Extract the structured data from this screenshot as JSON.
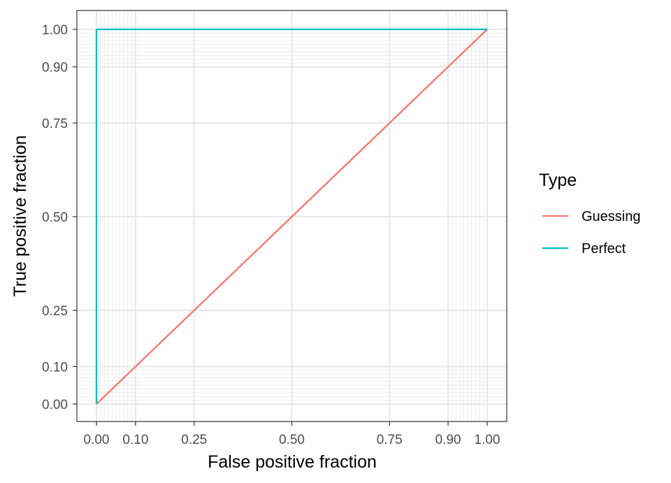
{
  "chart_data": {
    "type": "line",
    "title": "",
    "xlabel": "False positive fraction",
    "ylabel": "True positive fraction",
    "xlim": [
      0,
      1
    ],
    "ylim": [
      0,
      1
    ],
    "x_ticks": [
      0.0,
      0.1,
      0.25,
      0.5,
      0.75,
      0.9,
      1.0
    ],
    "y_ticks": [
      0.0,
      0.1,
      0.25,
      0.5,
      0.75,
      0.9,
      1.0
    ],
    "x_tick_labels": [
      "0.00",
      "0.10",
      "0.25",
      "0.50",
      "0.75",
      "0.90",
      "1.00"
    ],
    "y_tick_labels": [
      "0.00",
      "0.10",
      "0.25",
      "0.50",
      "0.75",
      "0.90",
      "1.00"
    ],
    "minor_grid": [
      0.01,
      0.02,
      0.03,
      0.04,
      0.05,
      0.06,
      0.07,
      0.08,
      0.09,
      0.91,
      0.92,
      0.93,
      0.94,
      0.95,
      0.96,
      0.97,
      0.98,
      0.99
    ],
    "grid": true,
    "legend": {
      "title": "Type",
      "placement": "right",
      "entries": [
        "Guessing",
        "Perfect"
      ]
    },
    "series": [
      {
        "name": "Guessing",
        "color": "#F8766D",
        "points": [
          [
            0,
            0
          ],
          [
            1,
            1
          ]
        ]
      },
      {
        "name": "Perfect",
        "color": "#00BFC4",
        "points": [
          [
            0,
            0
          ],
          [
            0,
            1
          ],
          [
            1,
            1
          ]
        ]
      }
    ]
  }
}
